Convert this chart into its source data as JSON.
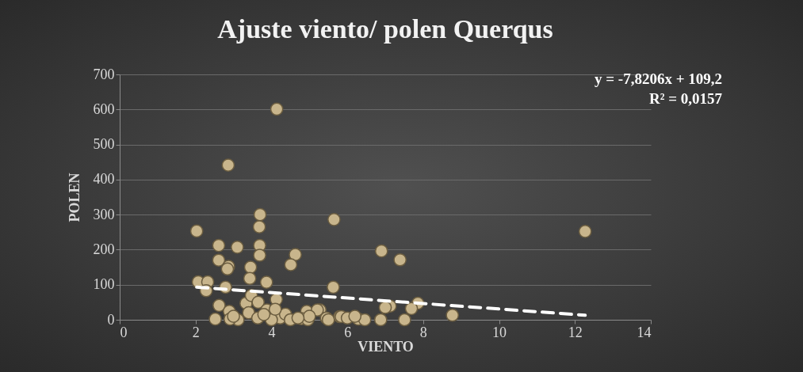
{
  "chart_data": {
    "type": "scatter",
    "title": "Ajuste viento/ polen Querqus",
    "xlabel": "VIENTO",
    "ylabel": "POLEN",
    "xlim": [
      0,
      14
    ],
    "xticks": [
      0,
      2,
      4,
      6,
      8,
      10,
      12,
      14
    ],
    "ylim": [
      0,
      700
    ],
    "yticks": [
      0,
      100,
      200,
      300,
      400,
      500,
      600,
      700
    ],
    "grid": "y",
    "marker": "circle",
    "annotations": [
      "y = -7,8206x + 109,2",
      "R² = 0,0157"
    ],
    "series": [
      {
        "color": "#c8b58c",
        "x": [
          4.14,
          2.86,
          2.03,
          3.7,
          3.68,
          5.65,
          2.61,
          3.1,
          3.69,
          3.69,
          2.61,
          2.87,
          2.84,
          4.63,
          4.51,
          3.45,
          3.43,
          3.87,
          2.07,
          2.32,
          2.28,
          2.79,
          5.63,
          2.62,
          2.89,
          2.52,
          3.12,
          3.33,
          3.47,
          3.65,
          3.4,
          3.64,
          4.13,
          3.88,
          4.23,
          4.93,
          4.79,
          5.28,
          5.45,
          5.8,
          4.37,
          2.91,
          6.9,
          7.39,
          7.13,
          7.0,
          7.86,
          7.69,
          8.77,
          7.51,
          6.88,
          6.29,
          6.46,
          5.84,
          4.96,
          5.21,
          12.27,
          3.0,
          4.0,
          4.5,
          5.0,
          5.5,
          6.0,
          6.2,
          3.8,
          4.1,
          4.7
        ],
        "values": [
          601,
          441,
          253,
          300,
          265,
          286,
          212,
          207,
          212,
          184,
          170,
          152,
          145,
          186,
          157,
          150,
          118,
          107,
          108,
          108,
          83,
          93,
          93,
          41,
          24,
          2,
          0,
          47,
          69,
          50,
          20,
          5,
          58,
          28,
          5,
          24,
          3,
          28,
          5,
          9,
          16,
          2,
          196,
          171,
          39,
          35,
          47,
          32,
          13,
          0,
          0,
          2,
          0,
          9,
          0,
          28,
          252,
          10,
          0,
          0,
          10,
          0,
          5,
          10,
          15,
          30,
          5
        ]
      },
      {
        "type": "line",
        "color": "#ffffff",
        "line_style": "dashed",
        "marker": "none",
        "x": [
          2.03,
          12.27
        ],
        "values": [
          93,
          13
        ]
      }
    ]
  }
}
